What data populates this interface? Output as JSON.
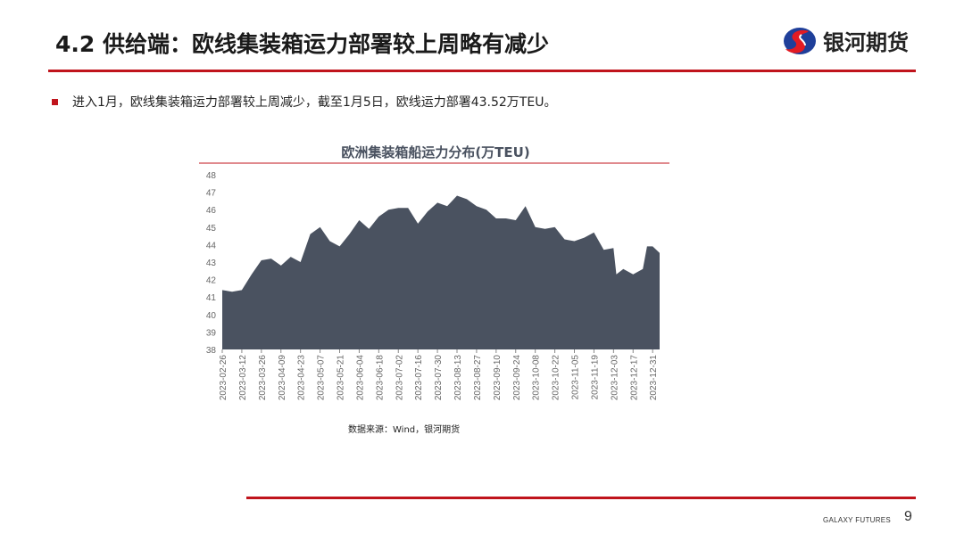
{
  "header": {
    "title": "4.2 供给端：欧线集装箱运力部署较上周略有减少",
    "logo_text": "银河期货"
  },
  "bullet": "进入1月，欧线集装箱运力部署较上周减少，截至1月5日，欧线运力部署43.52万TEU。",
  "source": "数据来源：Wind，银河期货",
  "footer": {
    "brand": "GALAXY FUTURES",
    "page": "9"
  },
  "colors": {
    "accent": "#c0141c",
    "area": "#4a5260"
  },
  "chart_data": {
    "type": "area",
    "title": "欧洲集装箱船运力分布(万TEU)",
    "ylim": [
      38,
      48
    ],
    "yticks": [
      38,
      39,
      40,
      41,
      42,
      43,
      44,
      45,
      46,
      47,
      48
    ],
    "xticks": [
      "2023-02-26",
      "2023-03-12",
      "2023-03-26",
      "2023-04-09",
      "2023-04-23",
      "2023-05-07",
      "2023-05-21",
      "2023-06-04",
      "2023-06-18",
      "2023-07-02",
      "2023-07-16",
      "2023-07-30",
      "2023-08-13",
      "2023-08-27",
      "2023-09-10",
      "2023-09-24",
      "2023-10-08",
      "2023-10-22",
      "2023-11-05",
      "2023-11-19",
      "2023-12-03",
      "2023-12-17",
      "2023-12-31"
    ],
    "grid": false,
    "x": [
      "2023-02-26",
      "2023-03-05",
      "2023-03-12",
      "2023-03-19",
      "2023-03-26",
      "2023-04-02",
      "2023-04-09",
      "2023-04-16",
      "2023-04-23",
      "2023-04-30",
      "2023-05-07",
      "2023-05-14",
      "2023-05-21",
      "2023-05-28",
      "2023-06-04",
      "2023-06-11",
      "2023-06-18",
      "2023-06-25",
      "2023-07-02",
      "2023-07-09",
      "2023-07-16",
      "2023-07-23",
      "2023-07-30",
      "2023-08-06",
      "2023-08-13",
      "2023-08-20",
      "2023-08-27",
      "2023-09-03",
      "2023-09-10",
      "2023-09-17",
      "2023-09-24",
      "2023-10-01",
      "2023-10-08",
      "2023-10-15",
      "2023-10-22",
      "2023-10-29",
      "2023-11-05",
      "2023-11-12",
      "2023-11-19",
      "2023-11-26",
      "2023-12-03",
      "2023-12-05",
      "2023-12-10",
      "2023-12-17",
      "2023-12-24",
      "2023-12-27",
      "2023-12-31",
      "2024-01-05"
    ],
    "values": [
      41.4,
      41.3,
      41.4,
      42.3,
      43.1,
      43.2,
      42.8,
      43.3,
      43.0,
      44.6,
      45.0,
      44.2,
      43.9,
      44.6,
      45.4,
      44.9,
      45.6,
      46.0,
      46.1,
      46.1,
      45.2,
      45.9,
      46.4,
      46.2,
      46.8,
      46.6,
      46.2,
      46.0,
      45.5,
      45.5,
      45.4,
      46.2,
      45.0,
      44.9,
      45.0,
      44.3,
      44.2,
      44.4,
      44.7,
      43.7,
      43.8,
      42.3,
      42.6,
      42.3,
      42.6,
      43.9,
      43.9,
      43.52
    ]
  }
}
